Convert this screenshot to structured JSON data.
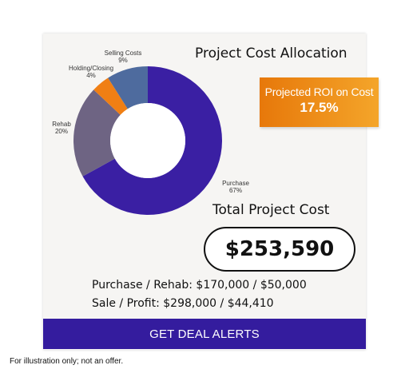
{
  "chart_data": {
    "type": "pie",
    "title": "Project Cost Allocation",
    "categories": [
      "Purchase",
      "Rehab",
      "Holding/Closing",
      "Selling Costs"
    ],
    "values": [
      67,
      20,
      4,
      9
    ],
    "value_labels": [
      "67%",
      "20%",
      "4%",
      "9%"
    ],
    "colors": [
      "#3a1fa3",
      "#6e6483",
      "#f07f14",
      "#4e6b9e"
    ],
    "donut": true,
    "legend": "none"
  },
  "roi": {
    "label": "Projected ROI on Cost",
    "value": "17.5%"
  },
  "total": {
    "label": "Total Project Cost",
    "value": "$253,590"
  },
  "details": {
    "purchase_rehab": "Purchase / Rehab: $170,000 / $50,000",
    "sale_profit": "Sale / Profit: $298,000 / $44,410"
  },
  "cta": {
    "label": "GET DEAL ALERTS"
  },
  "footnote": "For illustration only; not an offer."
}
